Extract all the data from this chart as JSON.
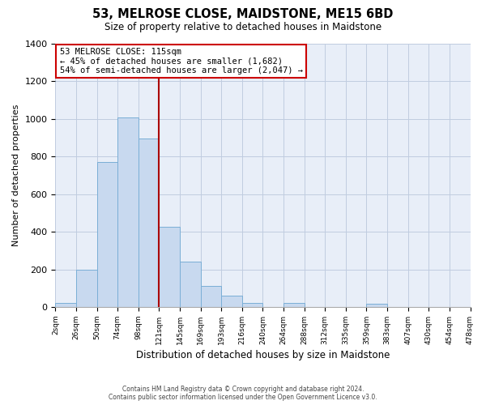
{
  "title": "53, MELROSE CLOSE, MAIDSTONE, ME15 6BD",
  "subtitle": "Size of property relative to detached houses in Maidstone",
  "xlabel": "Distribution of detached houses by size in Maidstone",
  "ylabel": "Number of detached properties",
  "bin_labels": [
    "2sqm",
    "26sqm",
    "50sqm",
    "74sqm",
    "98sqm",
    "121sqm",
    "145sqm",
    "169sqm",
    "193sqm",
    "216sqm",
    "240sqm",
    "264sqm",
    "288sqm",
    "312sqm",
    "335sqm",
    "359sqm",
    "383sqm",
    "407sqm",
    "430sqm",
    "454sqm",
    "478sqm"
  ],
  "bar_values": [
    20,
    200,
    770,
    1010,
    895,
    425,
    240,
    112,
    62,
    22,
    0,
    20,
    0,
    0,
    0,
    15,
    0,
    0,
    0,
    0
  ],
  "bar_color": "#c8d9ef",
  "bar_edge_color": "#7aaed6",
  "vline_color": "#aa0000",
  "annotation_text": "53 MELROSE CLOSE: 115sqm\n← 45% of detached houses are smaller (1,682)\n54% of semi-detached houses are larger (2,047) →",
  "ylim": [
    0,
    1400
  ],
  "yticks": [
    0,
    200,
    400,
    600,
    800,
    1000,
    1200,
    1400
  ],
  "footnote": "Contains HM Land Registry data © Crown copyright and database right 2024.\nContains public sector information licensed under the Open Government Licence v3.0.",
  "background_color": "#ffffff",
  "plot_bg_color": "#e8eef8",
  "grid_color": "#c0cce0"
}
